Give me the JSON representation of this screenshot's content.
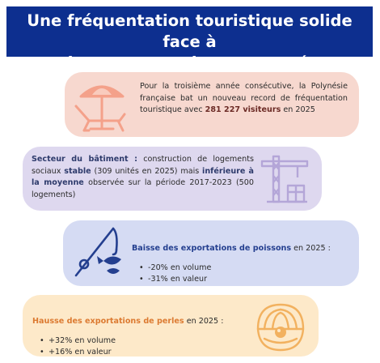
{
  "title": {
    "line1": "Une fréquentation touristique solide face à",
    "line2": "des secteurs plus contrastés"
  },
  "tourism": {
    "text_before": "Pour la troisième année consécutive, la Polynésie française bat un nouveau record de fréquentation touristique avec ",
    "highlight": "281 227 visiteurs",
    "text_after": " en 2025",
    "icon": "beach-chair-umbrella-icon",
    "color": "#f4a18a"
  },
  "building": {
    "label": "Secteur du bâtiment :",
    "text1": " construction de logements sociaux ",
    "stable": "stable",
    "text2": " (309 unités en 2025) mais ",
    "below": "inférieure à la moyenne",
    "text3": " observée sur la période 2017-2023 (500 logements)",
    "icon": "construction-crane-icon",
    "color": "#b4a6d8"
  },
  "fish": {
    "label": "Baisse des exportations de poissons",
    "suffix": " en 2025 :",
    "items": [
      "-20% en volume",
      "-31% en valeur"
    ],
    "icon": "fishing-rod-fish-icon",
    "color": "#243f8f"
  },
  "pearls": {
    "label": "Hausse des exportations de perles",
    "suffix": " en 2025 :",
    "items": [
      "+32% en volume",
      "+16% en valeur"
    ],
    "icon": "pearl-oyster-icon",
    "color": "#f2b15f"
  }
}
